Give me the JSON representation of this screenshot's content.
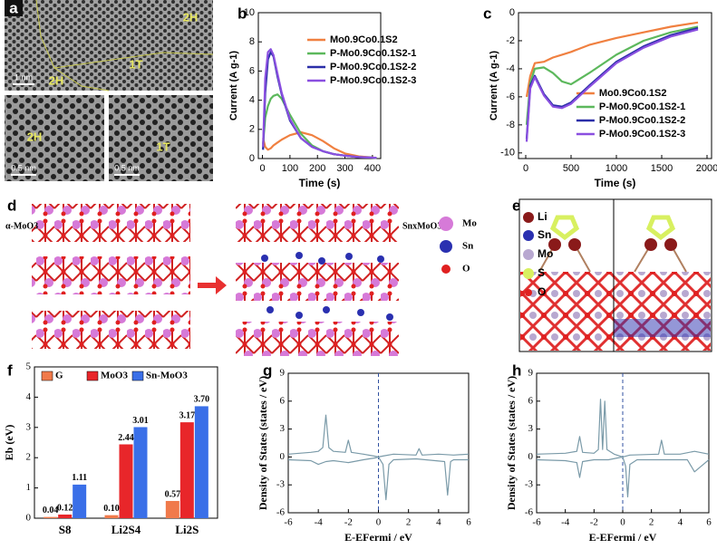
{
  "panel_a": {
    "panel": "a",
    "labels": [
      "2H",
      "1T",
      "2H"
    ],
    "scale_top": "1 nm",
    "left_label": "2H",
    "left_scale": "0.5 nm",
    "right_label": "1T",
    "right_scale": "0.5 nm"
  },
  "panel_d": {
    "panel": "d",
    "left_label": "α-MoO3",
    "right_label": "SnxMoO3",
    "legend": [
      "Mo",
      "Sn",
      "O"
    ]
  },
  "panel_e": {
    "panel": "e",
    "legend": [
      "Li",
      "Sn",
      "Mo",
      "S",
      "O"
    ]
  },
  "chart_data": [
    {
      "type": "line",
      "panel": "b",
      "xlabel": "Time (s)",
      "ylabel": "Current (A g-1)",
      "xlim": [
        -15,
        430
      ],
      "ylim": [
        0,
        10
      ],
      "xticks": [
        0,
        100,
        200,
        300,
        400
      ],
      "yticks": [
        0,
        2,
        4,
        6,
        8,
        10
      ],
      "legend": "upper right",
      "x": [
        2,
        10,
        20,
        30,
        40,
        55,
        70,
        100,
        140,
        180,
        220,
        260,
        300,
        350,
        415
      ],
      "series": [
        {
          "name": "Mo0.9Co0.1S2",
          "color": "#f08040",
          "values": [
            1.4,
            0.8,
            0.6,
            0.7,
            0.9,
            1.1,
            1.3,
            1.6,
            1.8,
            1.6,
            1.2,
            0.7,
            0.35,
            0.15,
            0.05
          ]
        },
        {
          "name": "P-Mo0.9Co0.1S2-1",
          "color": "#5cb85c",
          "values": [
            1.0,
            2.8,
            3.6,
            4.1,
            4.3,
            4.4,
            4.1,
            3.0,
            1.7,
            0.9,
            0.5,
            0.3,
            0.2,
            0.1,
            0.05
          ]
        },
        {
          "name": "P-Mo0.9Co0.1S2-2",
          "color": "#2a2ea8",
          "values": [
            0.6,
            4.5,
            6.8,
            7.3,
            7.0,
            5.6,
            4.4,
            2.6,
            1.4,
            0.8,
            0.5,
            0.3,
            0.2,
            0.1,
            0.05
          ]
        },
        {
          "name": "P-Mo0.9Co0.1S2-3",
          "color": "#8a4fe0",
          "values": [
            0.8,
            5.5,
            7.3,
            7.5,
            7.1,
            5.8,
            4.5,
            2.7,
            1.4,
            0.8,
            0.5,
            0.3,
            0.2,
            0.1,
            0.05
          ]
        }
      ]
    },
    {
      "type": "line",
      "panel": "c",
      "xlabel": "Time (s)",
      "ylabel": "Current (A g-1)",
      "xlim": [
        -80,
        2050
      ],
      "ylim": [
        -10.4,
        0
      ],
      "xticks": [
        0,
        500,
        1000,
        1500,
        2000
      ],
      "yticks": [
        0,
        -2,
        -4,
        -6,
        -8,
        -10
      ],
      "legend": "lower right",
      "x": [
        10,
        50,
        100,
        200,
        300,
        400,
        500,
        700,
        1000,
        1300,
        1600,
        1900
      ],
      "series": [
        {
          "name": "Mo0.9Co0.1S2",
          "color": "#f08040",
          "values": [
            -6,
            -4.5,
            -3.6,
            -3.5,
            -3.2,
            -3.0,
            -2.8,
            -2.3,
            -1.8,
            -1.4,
            -1.0,
            -0.7
          ]
        },
        {
          "name": "P-Mo0.9Co0.1S2-1",
          "color": "#5cb85c",
          "values": [
            -8,
            -5,
            -4,
            -3.9,
            -4.3,
            -4.9,
            -5.1,
            -4.3,
            -3.0,
            -2.0,
            -1.4,
            -1.0
          ]
        },
        {
          "name": "P-Mo0.9Co0.1S2-2",
          "color": "#2a2ea8",
          "values": [
            -9,
            -5.2,
            -4.5,
            -5.8,
            -6.6,
            -6.7,
            -6.4,
            -5.2,
            -3.5,
            -2.4,
            -1.6,
            -1.1
          ]
        },
        {
          "name": "P-Mo0.9Co0.1S2-3",
          "color": "#8a4fe0",
          "values": [
            -9.2,
            -5.4,
            -4.6,
            -5.9,
            -6.7,
            -6.8,
            -6.5,
            -5.3,
            -3.6,
            -2.5,
            -1.7,
            -1.2
          ]
        }
      ]
    },
    {
      "type": "bar",
      "panel": "f",
      "ylabel": "Eb (eV)",
      "ylim": [
        0,
        5
      ],
      "yticks": [
        0,
        1,
        2,
        3,
        4,
        5
      ],
      "legend": "upper center",
      "categories": [
        "S8",
        "Li2S4",
        "Li2S"
      ],
      "series": [
        {
          "name": "G",
          "color": "#f07a4b",
          "values": [
            0.04,
            0.1,
            0.57
          ],
          "value_labels": [
            "0.04",
            "0.10",
            "0.57"
          ]
        },
        {
          "name": "MoO3",
          "color": "#e8262a",
          "values": [
            0.12,
            2.44,
            3.17
          ],
          "value_labels": [
            "0.12",
            "2.44",
            "3.17"
          ]
        },
        {
          "name": "Sn-MoO3",
          "color": "#3a6fe8",
          "values": [
            1.11,
            3.01,
            3.7
          ],
          "value_labels": [
            "1.11",
            "3.01",
            "3.70"
          ]
        }
      ]
    },
    {
      "type": "line",
      "panel": "g",
      "xlabel": "E-EFermi / eV",
      "ylabel": "Density of States (states / eV)",
      "xlim": [
        -6,
        6
      ],
      "ylim": [
        -6,
        9
      ],
      "xticks": [
        -6,
        -4,
        -2,
        0,
        2,
        4,
        6
      ],
      "yticks": [
        -6,
        -3,
        0,
        3,
        6,
        9
      ],
      "vline": 0,
      "series": [
        {
          "color": "#7a9aa8",
          "x": [
            -6,
            -4.5,
            -4,
            -3.7,
            -3.5,
            -3.3,
            -3,
            -2.2,
            -2,
            -1.8,
            -1,
            -0.3,
            0,
            0.3,
            1,
            2.5,
            2.7,
            2.9,
            4,
            5,
            6
          ],
          "values": [
            0.3,
            0.5,
            0.6,
            1,
            4.5,
            1,
            0.6,
            0.5,
            1.8,
            0.5,
            0.3,
            0.1,
            0,
            0.1,
            0.3,
            0.2,
            0.9,
            0.2,
            0.3,
            0.2,
            0.3
          ]
        },
        {
          "color": "#7a9aa8",
          "x": [
            -6,
            -4.5,
            -4,
            -3.5,
            -3,
            -2,
            -1,
            -0.2,
            0,
            0.3,
            0.5,
            0.7,
            1,
            2.5,
            4.4,
            4.6,
            4.8,
            5,
            6
          ],
          "values": [
            -0.3,
            -0.4,
            -0.8,
            -0.5,
            -0.4,
            -0.6,
            -0.3,
            -0.1,
            0,
            -0.8,
            -4.6,
            -0.8,
            -0.3,
            -0.2,
            -0.5,
            -4.1,
            -0.5,
            -0.3,
            -0.3
          ]
        }
      ]
    },
    {
      "type": "line",
      "panel": "h",
      "xlabel": "E-EFermi / eV",
      "ylabel": "Density of States (states / eV)",
      "xlim": [
        -6,
        6
      ],
      "ylim": [
        -6,
        9
      ],
      "xticks": [
        -6,
        -4,
        -2,
        0,
        2,
        4,
        6
      ],
      "yticks": [
        -6,
        -3,
        0,
        3,
        6,
        9
      ],
      "vline": 0,
      "series": [
        {
          "color": "#7a9aa8",
          "x": [
            -6,
            -4,
            -3.2,
            -3,
            -2.8,
            -2,
            -1.7,
            -1.55,
            -1.4,
            -1.25,
            -1.1,
            -0.6,
            0,
            0.5,
            2.5,
            2.7,
            2.9,
            4,
            5,
            6
          ],
          "values": [
            0.3,
            0.4,
            0.6,
            2.2,
            0.5,
            0.4,
            0.8,
            6.2,
            0.8,
            6.0,
            0.8,
            0.3,
            0,
            0.2,
            0.3,
            1.8,
            0.3,
            0.3,
            0.6,
            0.3
          ]
        },
        {
          "color": "#7a9aa8",
          "x": [
            -6,
            -4,
            -3.2,
            -3,
            -2.8,
            -2,
            -1,
            0,
            0.2,
            0.35,
            0.5,
            1,
            2.5,
            4.5,
            5,
            6
          ],
          "values": [
            -0.3,
            -0.4,
            -0.6,
            -2.2,
            -0.5,
            -0.3,
            -0.3,
            0,
            -1,
            -4.3,
            -0.8,
            -0.3,
            -0.3,
            -0.3,
            -1.6,
            -0.3
          ]
        }
      ]
    }
  ]
}
